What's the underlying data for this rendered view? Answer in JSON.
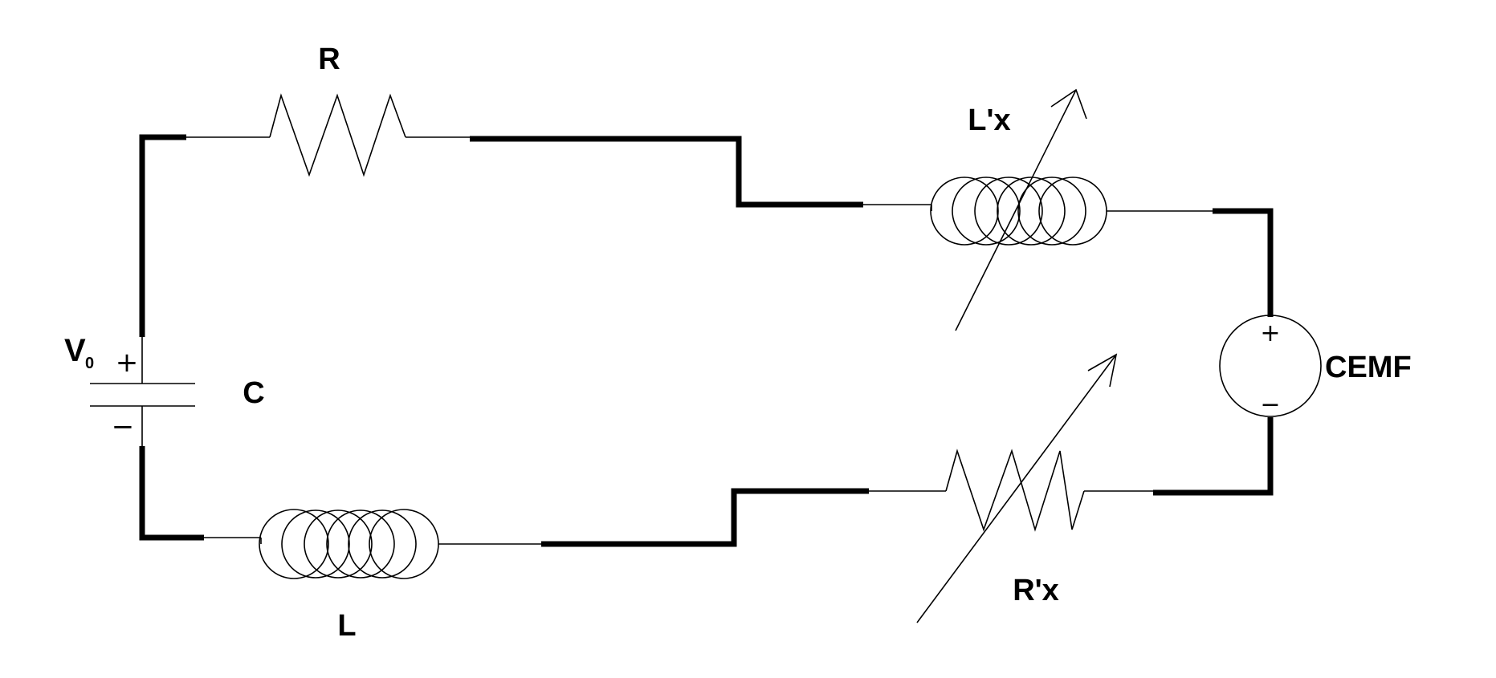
{
  "diagram": {
    "labels": {
      "resistor": "R",
      "inductor": "L",
      "capacitor": "C",
      "source_voltage": "V",
      "source_voltage_subscript": "0",
      "variable_inductor": "L'x",
      "variable_resistor": "R'x",
      "cemf": "CEMF"
    },
    "polarity": {
      "capacitor_plus": "+",
      "capacitor_minus": "−",
      "cemf_plus": "+",
      "cemf_minus": "−"
    }
  }
}
